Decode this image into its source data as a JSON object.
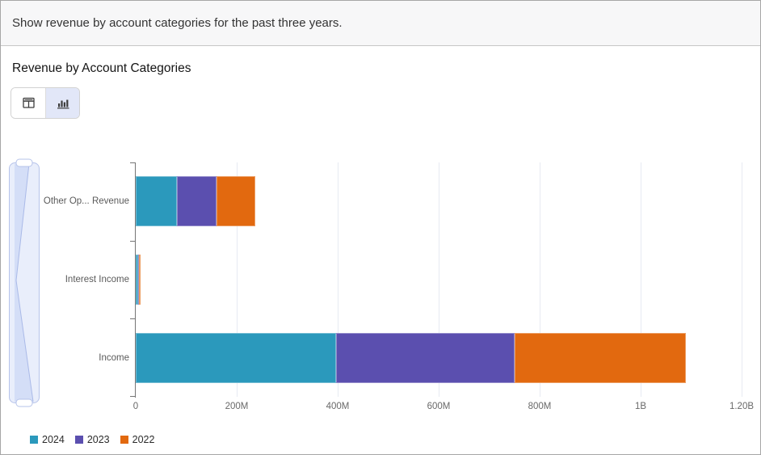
{
  "prompt_bar": {
    "text": "Show revenue by account categories for the past three years."
  },
  "panel": {
    "title": "Revenue by Account Categories",
    "view_toggle": {
      "options": [
        {
          "name": "table-view",
          "icon": "table-icon",
          "selected": false
        },
        {
          "name": "chart-view",
          "icon": "bar-chart-icon",
          "selected": true
        }
      ]
    }
  },
  "chart_data": {
    "type": "bar",
    "orientation": "horizontal",
    "stacked": true,
    "title": "Revenue by Account Categories",
    "categories": [
      "Other Op... Revenue",
      "Interest Income",
      "Income"
    ],
    "series": [
      {
        "name": "2024",
        "color": "#2B99BC",
        "values": [
          82000000,
          4000000,
          397000000
        ]
      },
      {
        "name": "2023",
        "color": "#5B4FAF",
        "values": [
          78000000,
          2000000,
          353000000
        ]
      },
      {
        "name": "2022",
        "color": "#E2690F",
        "values": [
          76000000,
          3000000,
          340000000
        ]
      }
    ],
    "xlabel": "",
    "ylabel": "",
    "xlim": [
      0,
      1200000000
    ],
    "x_ticks": [
      "0",
      "200M",
      "400M",
      "600M",
      "800M",
      "1B",
      "1.20B"
    ],
    "grid": true,
    "legend_position": "bottom-left",
    "axis_color": "#757575",
    "gridline_color": "#e7eaf2"
  },
  "scrollbar": {
    "track_color": "#e9eefb",
    "thumb_color": "#d4def7",
    "border_color": "#b6c3ea"
  }
}
